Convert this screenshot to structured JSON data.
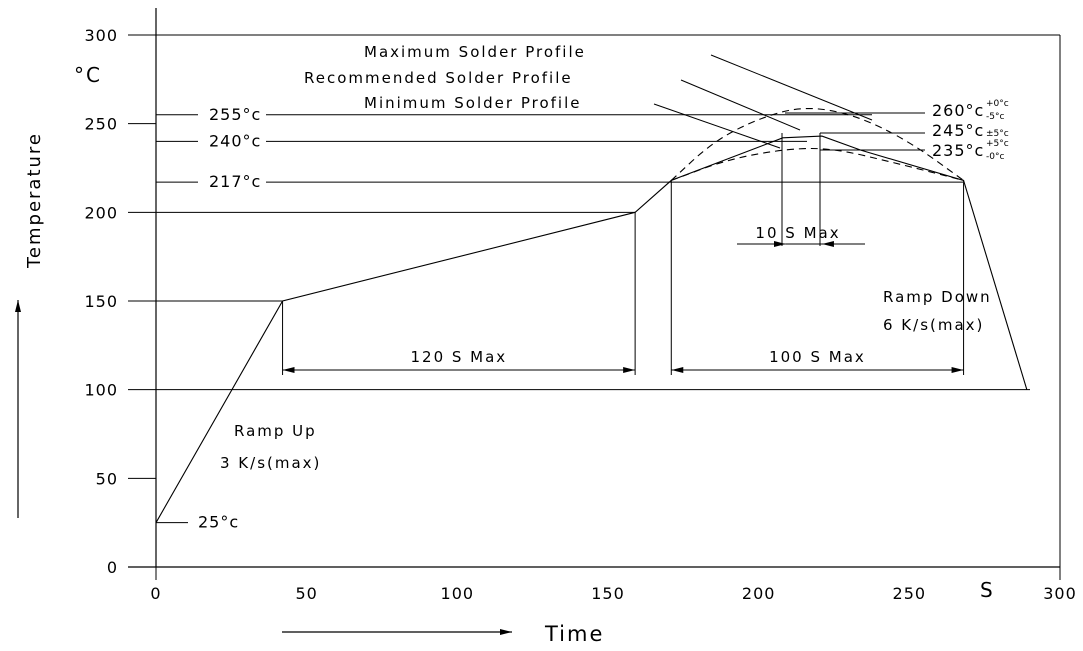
{
  "chart_data": {
    "type": "line",
    "title": "",
    "xlabel": "Time",
    "ylabel": "Temperature",
    "x_unit": "S",
    "y_unit": "°C",
    "xlim": [
      0,
      300
    ],
    "ylim": [
      0,
      300
    ],
    "x_ticks": [
      "0",
      "50",
      "100",
      "150",
      "200",
      "250",
      "300"
    ],
    "y_ticks": [
      "0",
      "50",
      "100",
      "150",
      "200",
      "250",
      "300"
    ],
    "series": [
      {
        "style": "solid",
        "points": [
          [
            0,
            25
          ],
          [
            42,
            150
          ],
          [
            159,
            200
          ],
          [
            171,
            218
          ],
          [
            208,
            242
          ],
          [
            221,
            243
          ],
          [
            234,
            235
          ],
          [
            268,
            218
          ],
          [
            289,
            100
          ]
        ]
      },
      {
        "name": "Maximum Solder Profile",
        "style": "dashed",
        "points": [
          [
            171,
            218
          ],
          [
            185,
            240
          ],
          [
            200,
            253
          ],
          [
            215,
            260
          ],
          [
            232,
            255
          ],
          [
            250,
            240
          ],
          [
            268,
            218
          ]
        ]
      },
      {
        "name": "Minimum Solder Profile",
        "style": "dashed",
        "points": [
          [
            171,
            218
          ],
          [
            190,
            230
          ],
          [
            210,
            236
          ],
          [
            225,
            236
          ],
          [
            245,
            228
          ],
          [
            268,
            218
          ]
        ]
      }
    ],
    "reference_lines": [
      {
        "label": "25°c",
        "y": 25
      },
      {
        "label": "217°c",
        "y": 217
      },
      {
        "label": "240°c",
        "y": 240
      },
      {
        "label": "255°c",
        "y": 255
      }
    ],
    "right_labels": [
      {
        "main": "260°c",
        "sup": "+0°c",
        "sub": "-5°c",
        "y": 260
      },
      {
        "main": "245°c",
        "tol": "±5°c",
        "y": 245
      },
      {
        "main": "235°c",
        "sup": "+5°c",
        "sub": "-0°c",
        "y": 235
      }
    ],
    "profile_labels": [
      "Maximum Solder Profile",
      "Recommended Solder Profile",
      "Minimum Solder Profile"
    ],
    "annotations": {
      "ramp_up": [
        "Ramp Up",
        "3 K/s(max)"
      ],
      "ramp_down": [
        "Ramp Down",
        "6 K/s(max)"
      ],
      "preheat": "120 S Max",
      "liquidus": "100 S Max",
      "peak": "10 S Max"
    },
    "time_spans": [
      {
        "label": "120 S Max",
        "from": 42,
        "to": 159
      },
      {
        "label": "100 S Max",
        "from": 171,
        "to": 268
      },
      {
        "label": "10 S Max",
        "from": 209,
        "to": 221
      }
    ]
  }
}
